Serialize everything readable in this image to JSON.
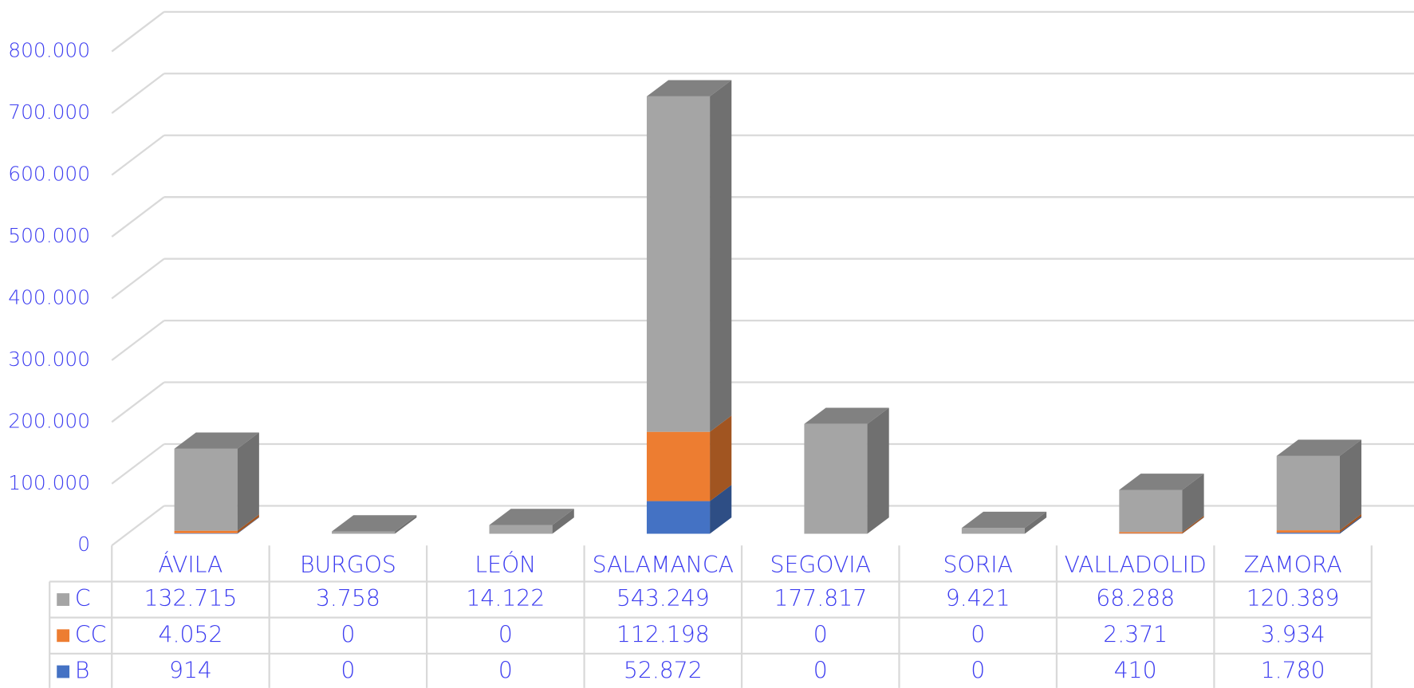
{
  "chart_data": {
    "type": "bar3d_stacked",
    "categories": [
      "ÁVILA",
      "BURGOS",
      "LEÓN",
      "SALAMANCA",
      "SEGOVIA",
      "SORIA",
      "VALLADOLID",
      "ZAMORA"
    ],
    "series": [
      {
        "name": "C",
        "color": "#a5a5a5",
        "values": [
          132715,
          3758,
          14122,
          543249,
          177817,
          9421,
          68288,
          120389
        ],
        "value_labels": [
          "132.715",
          "3.758",
          "14.122",
          "543.249",
          "177.817",
          "9.421",
          "68.288",
          "120.389"
        ]
      },
      {
        "name": "CC",
        "color": "#ed7d31",
        "values": [
          4052,
          0,
          0,
          112198,
          0,
          0,
          2371,
          3934
        ],
        "value_labels": [
          "4.052",
          "0",
          "0",
          "112.198",
          "0",
          "0",
          "2.371",
          "3.934"
        ]
      },
      {
        "name": "B",
        "color": "#4472c4",
        "values": [
          914,
          0,
          0,
          52872,
          0,
          0,
          410,
          1780
        ],
        "value_labels": [
          "914",
          "0",
          "0",
          "52.872",
          "0",
          "0",
          "410",
          "1.780"
        ]
      }
    ],
    "stack_order": [
      "B",
      "CC",
      "C"
    ],
    "ylim": [
      0,
      800000
    ],
    "yticks": [
      0,
      {
        "value": 100000,
        "label": "100.000"
      },
      {
        "value": 200000,
        "label": "200.000"
      },
      {
        "value": 300000,
        "label": "300.000"
      },
      {
        "value": 400000,
        "label": "400.000"
      },
      {
        "value": 500000,
        "label": "500.000"
      },
      {
        "value": 600000,
        "label": "600.000"
      },
      {
        "value": 700000,
        "label": "700.000"
      },
      {
        "value": 800000,
        "label": "800.000"
      }
    ],
    "grid": true,
    "data_table": true
  }
}
